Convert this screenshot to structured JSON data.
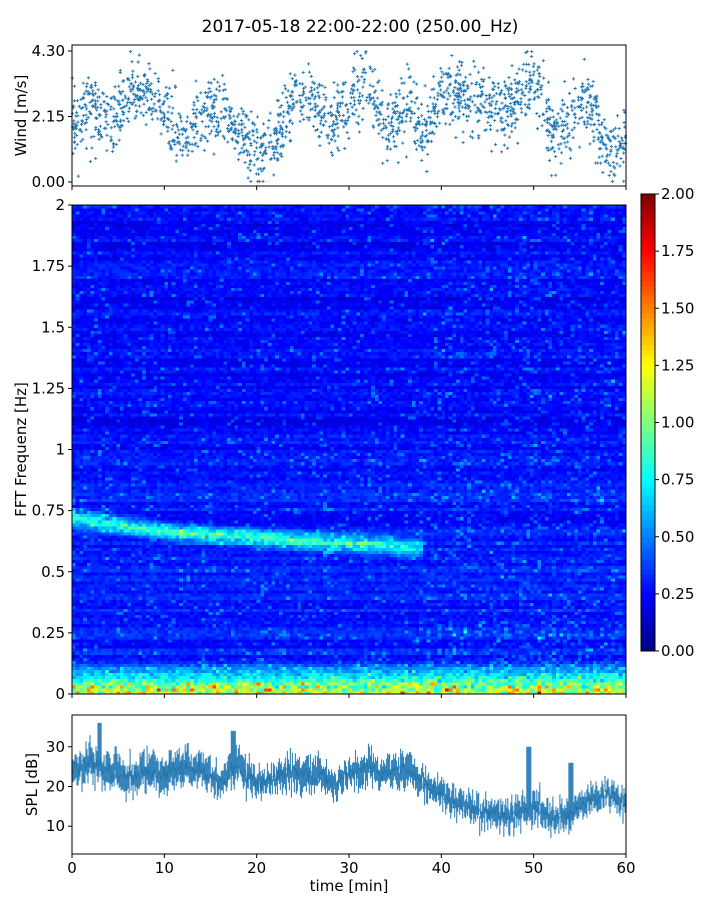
{
  "title": "2017-05-18 22:00-22:00 (250.00_Hz)",
  "chart_data": [
    {
      "type": "scatter",
      "panel": "wind",
      "ylabel": "Wind [m/s]",
      "xlim": [
        0,
        60
      ],
      "ylim": [
        0,
        4.3
      ],
      "yticks": [
        "0.00",
        "2.15",
        "4.30"
      ],
      "y_tick_values": [
        0,
        2.15,
        4.3
      ],
      "color": "#1f77b4",
      "marker": "+",
      "n_points": 1900,
      "trend": {
        "x": [
          0,
          2,
          4,
          6,
          8,
          10,
          12,
          14,
          16,
          18,
          20,
          22,
          24,
          26,
          28,
          30,
          32,
          34,
          36,
          38,
          40,
          42,
          44,
          46,
          48,
          50,
          52,
          54,
          56,
          58,
          60
        ],
        "y": [
          1.9,
          2.5,
          1.9,
          2.7,
          3.0,
          2.3,
          1.5,
          2.0,
          2.4,
          1.5,
          1.0,
          1.2,
          2.6,
          2.7,
          1.9,
          2.6,
          3.4,
          1.6,
          2.5,
          1.7,
          2.9,
          2.9,
          2.7,
          2.2,
          2.6,
          3.4,
          1.6,
          2.0,
          2.6,
          1.0,
          1.2
        ]
      }
    },
    {
      "type": "heatmap",
      "panel": "spectrogram",
      "ylabel": "FFT Frequenz [Hz]",
      "xlim": [
        0,
        60
      ],
      "ylim": [
        0,
        2
      ],
      "yticks": [
        "0",
        "0.25",
        "0.5",
        "0.75",
        "1",
        "1.25",
        "1.5",
        "1.75",
        "2"
      ],
      "y_tick_values": [
        0,
        0.25,
        0.5,
        0.75,
        1,
        1.25,
        1.5,
        1.75,
        2
      ],
      "colormap": "jet",
      "colorbar": {
        "range": [
          0,
          2
        ],
        "ticks": [
          "0.00",
          "0.25",
          "0.50",
          "0.75",
          "1.00",
          "1.25",
          "1.50",
          "1.75",
          "2.00"
        ],
        "tick_values": [
          0,
          0.25,
          0.5,
          0.75,
          1,
          1.25,
          1.5,
          1.75,
          2
        ]
      },
      "background_level": 0.25,
      "features": [
        {
          "name": "tonal band",
          "x": [
            0,
            8,
            12,
            20,
            28,
            34,
            36
          ],
          "freq_hz": [
            0.72,
            0.68,
            0.66,
            0.64,
            0.62,
            0.61,
            0.6
          ],
          "level": 0.9
        },
        {
          "name": "low-frequency energy",
          "x": [
            0,
            60
          ],
          "freq_hz": [
            0,
            0.1
          ],
          "level": 1.6
        }
      ]
    },
    {
      "type": "area",
      "panel": "spl",
      "ylabel": "SPL [dB]",
      "xlabel": "time [min]",
      "xlim": [
        0,
        60
      ],
      "ylim": [
        3,
        38
      ],
      "yticks": [
        "10",
        "20",
        "30"
      ],
      "y_tick_values": [
        10,
        20,
        30
      ],
      "xticks": [
        "0",
        "10",
        "20",
        "30",
        "40",
        "50",
        "60"
      ],
      "x_tick_values": [
        0,
        10,
        20,
        30,
        40,
        50,
        60
      ],
      "color": "#1f77b4",
      "series": [
        {
          "x": [
            0,
            2,
            4,
            6,
            8,
            10,
            12,
            14,
            16,
            18,
            20,
            22,
            24,
            26,
            28,
            30,
            32,
            34,
            36,
            38,
            40,
            42,
            44,
            46,
            48,
            50,
            52,
            54,
            56,
            58,
            60
          ],
          "mean": [
            24,
            26,
            24,
            22,
            24,
            23,
            25,
            24,
            21,
            25,
            21,
            22,
            24,
            23,
            21,
            23,
            25,
            23,
            25,
            21,
            18,
            15,
            14,
            13,
            13,
            15,
            12,
            13,
            17,
            18,
            16
          ],
          "spread": [
            3,
            4,
            4,
            4,
            4,
            4,
            4,
            4,
            3,
            4,
            3,
            3,
            4,
            4,
            3,
            3,
            4,
            3,
            4,
            3,
            3,
            3,
            3,
            3,
            3,
            4,
            3,
            3,
            3,
            3,
            3
          ]
        }
      ],
      "peaks": [
        {
          "x": 3,
          "y": 36
        },
        {
          "x": 17.5,
          "y": 34
        },
        {
          "x": 49.5,
          "y": 30
        },
        {
          "x": 54,
          "y": 26
        }
      ]
    }
  ]
}
